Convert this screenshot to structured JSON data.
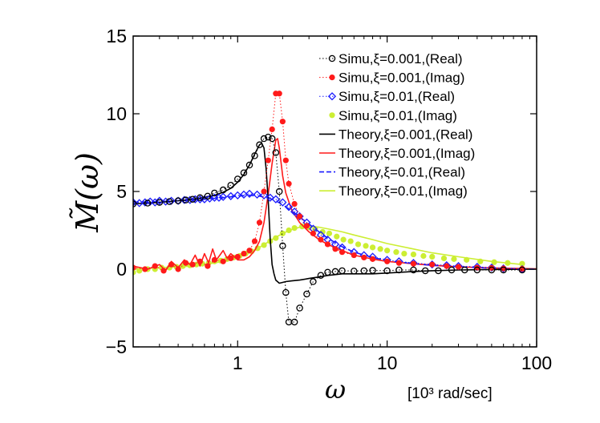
{
  "chart_data": {
    "type": "line",
    "xscale": "log",
    "xlim": [
      0.2,
      100
    ],
    "ylim": [
      -5,
      15
    ],
    "xticks": [
      1,
      10,
      100
    ],
    "xtick_labels": [
      "1",
      "10",
      "100"
    ],
    "yticks": [
      -5,
      0,
      5,
      10,
      15
    ],
    "ytick_labels": [
      "−5",
      "0",
      "5",
      "10",
      "15"
    ],
    "ylabel": "M̃(ω)",
    "xlabel": "ω",
    "xunit": "[10³ rad/sec]",
    "legend_position": "top-right",
    "grid": false,
    "series": [
      {
        "name": "Simu,ξ=0.001,(Real)",
        "kind": "marker",
        "marker": "circle",
        "color": "#000000",
        "dotted": true,
        "x": [
          0.2,
          0.25,
          0.3,
          0.35,
          0.4,
          0.45,
          0.5,
          0.56,
          0.63,
          0.7,
          0.8,
          0.9,
          1.0,
          1.1,
          1.2,
          1.3,
          1.4,
          1.5,
          1.6,
          1.7,
          1.8,
          1.9,
          2.0,
          2.1,
          2.2,
          2.4,
          2.6,
          2.9,
          3.2,
          3.6,
          4.0,
          4.5,
          5.0,
          6.0,
          7.0,
          8.0,
          10.0,
          12.0,
          15.0,
          18.0,
          22.0,
          27.0,
          33.0,
          40.0,
          50.0,
          60.0,
          80.0
        ],
        "y": [
          4.2,
          4.25,
          4.3,
          4.35,
          4.4,
          4.45,
          4.5,
          4.6,
          4.7,
          4.9,
          5.1,
          5.4,
          5.8,
          6.2,
          6.7,
          7.3,
          8.0,
          8.4,
          8.5,
          8.4,
          7.5,
          5.0,
          1.5,
          -1.5,
          -3.4,
          -3.4,
          -2.5,
          -1.6,
          -0.8,
          -0.4,
          -0.2,
          -0.15,
          -0.1,
          -0.12,
          -0.1,
          -0.08,
          -0.1,
          -0.05,
          -0.05,
          -0.1,
          -0.1,
          -0.05,
          -0.05,
          -0.05,
          -0.05,
          -0.05,
          -0.05
        ]
      },
      {
        "name": "Simu,ξ=0.001,(Imag)",
        "kind": "marker",
        "marker": "dot",
        "color": "#ff1a1a",
        "dotted": true,
        "x": [
          0.2,
          0.24,
          0.28,
          0.32,
          0.36,
          0.4,
          0.45,
          0.5,
          0.56,
          0.63,
          0.7,
          0.8,
          0.9,
          1.0,
          1.1,
          1.2,
          1.3,
          1.4,
          1.5,
          1.6,
          1.7,
          1.8,
          1.9,
          2.0,
          2.1,
          2.2,
          2.4,
          2.6,
          2.9,
          3.2,
          3.6,
          4.0,
          4.5,
          5.0,
          6.0,
          7.0,
          8.0,
          10.0,
          12.0,
          15.0,
          20.0,
          25.0,
          30.0,
          40.0,
          50.0,
          60.0,
          80.0
        ],
        "y": [
          0.1,
          0.0,
          0.2,
          -0.1,
          0.3,
          0.0,
          0.4,
          0.3,
          0.5,
          0.2,
          0.6,
          0.5,
          0.7,
          0.8,
          1.0,
          1.2,
          1.8,
          3.0,
          5.0,
          7.0,
          9.0,
          11.3,
          11.3,
          9.5,
          7.0,
          5.5,
          4.2,
          3.4,
          2.8,
          2.3,
          1.9,
          1.6,
          1.3,
          1.1,
          0.9,
          0.75,
          0.65,
          0.5,
          0.4,
          0.35,
          0.3,
          0.2,
          0.15,
          0.1,
          0.08,
          0.05,
          0.03
        ]
      },
      {
        "name": "Simu,ξ=0.01,(Real)",
        "kind": "marker",
        "marker": "diamond",
        "color": "#1a1aff",
        "dotted": true,
        "x": [
          0.2,
          0.22,
          0.24,
          0.26,
          0.28,
          0.3,
          0.33,
          0.36,
          0.4,
          0.44,
          0.48,
          0.52,
          0.56,
          0.6,
          0.65,
          0.7,
          0.75,
          0.8,
          0.9,
          1.0,
          1.1,
          1.2,
          1.35,
          1.5,
          1.65,
          1.8,
          2.0,
          2.2,
          2.4,
          2.6,
          2.9,
          3.2,
          3.6,
          4.0,
          4.5,
          5.0,
          6.0,
          7.0,
          8.0,
          10.0,
          12.0,
          15.0,
          20.0,
          25.0,
          30.0,
          40.0,
          50.0,
          60.0,
          80.0
        ],
        "y": [
          4.3,
          4.25,
          4.3,
          4.35,
          4.3,
          4.4,
          4.35,
          4.4,
          4.4,
          4.45,
          4.45,
          4.5,
          4.5,
          4.5,
          4.55,
          4.6,
          4.6,
          4.65,
          4.7,
          4.75,
          4.8,
          4.85,
          4.8,
          4.75,
          4.6,
          4.5,
          4.3,
          4.0,
          3.7,
          3.4,
          3.0,
          2.6,
          2.2,
          1.9,
          1.6,
          1.4,
          1.1,
          0.9,
          0.8,
          0.6,
          0.5,
          0.4,
          0.3,
          0.25,
          0.2,
          0.15,
          0.1,
          0.05,
          0.0
        ]
      },
      {
        "name": "Simu,ξ=0.01,(Imag)",
        "kind": "marker",
        "marker": "dot",
        "color": "#ccee33",
        "dotted": false,
        "x": [
          0.2,
          0.22,
          0.25,
          0.28,
          0.31,
          0.35,
          0.39,
          0.43,
          0.48,
          0.53,
          0.58,
          0.64,
          0.7,
          0.77,
          0.85,
          0.94,
          1.03,
          1.13,
          1.24,
          1.36,
          1.5,
          1.65,
          1.8,
          2.0,
          2.2,
          2.4,
          2.7,
          3.0,
          3.3,
          3.7,
          4.1,
          4.6,
          5.1,
          5.7,
          6.4,
          7.2,
          8.0,
          9.0,
          10.0,
          11.5,
          13.0,
          15.0,
          17.5,
          20.0,
          24.0,
          28.0,
          34.0,
          42.0,
          52.0,
          64.0,
          80.0
        ],
        "y": [
          -0.2,
          -0.1,
          0.0,
          0.0,
          0.1,
          0.1,
          0.15,
          0.2,
          0.25,
          0.3,
          0.35,
          0.4,
          0.5,
          0.55,
          0.65,
          0.75,
          0.85,
          1.0,
          1.15,
          1.35,
          1.55,
          1.8,
          2.0,
          2.3,
          2.5,
          2.65,
          2.75,
          2.7,
          2.6,
          2.4,
          2.3,
          2.1,
          1.9,
          1.8,
          1.6,
          1.5,
          1.4,
          1.3,
          1.2,
          1.1,
          1.0,
          0.95,
          0.85,
          0.8,
          0.7,
          0.65,
          0.6,
          0.5,
          0.45,
          0.4,
          0.35
        ]
      },
      {
        "name": "Theory,ξ=0.001,(Real)",
        "kind": "line",
        "color": "#000000",
        "dash": "none",
        "x": [
          0.2,
          0.3,
          0.4,
          0.5,
          0.6,
          0.7,
          0.8,
          0.9,
          1.0,
          1.1,
          1.2,
          1.3,
          1.4,
          1.45,
          1.5,
          1.55,
          1.6,
          1.65,
          1.7,
          1.75,
          1.8,
          1.9,
          2.0,
          2.1,
          2.3,
          2.6,
          3.0,
          3.5,
          4.0,
          5.0,
          6.0,
          8.0,
          10.0,
          15.0,
          20.0,
          30.0,
          50.0,
          100.0
        ],
        "y": [
          4.2,
          4.3,
          4.4,
          4.5,
          4.6,
          4.75,
          4.95,
          5.2,
          5.6,
          6.1,
          6.7,
          7.4,
          8.0,
          8.1,
          7.8,
          6.5,
          4.5,
          2.0,
          0.3,
          -0.3,
          -0.7,
          -0.9,
          -0.85,
          -0.8,
          -0.75,
          -0.7,
          -0.6,
          -0.5,
          -0.4,
          -0.3,
          -0.3,
          -0.3,
          -0.25,
          -0.15,
          -0.1,
          -0.05,
          -0.02,
          0.0
        ]
      },
      {
        "name": "Theory,ξ=0.001,(Imag)",
        "kind": "line",
        "color": "#ff1a1a",
        "dash": "none",
        "x": [
          0.2,
          0.25,
          0.3,
          0.33,
          0.36,
          0.4,
          0.44,
          0.48,
          0.52,
          0.56,
          0.6,
          0.64,
          0.68,
          0.72,
          0.76,
          0.8,
          0.85,
          0.9,
          0.95,
          1.0,
          1.1,
          1.2,
          1.3,
          1.4,
          1.5,
          1.6,
          1.7,
          1.8,
          1.85,
          1.9,
          2.0,
          2.1,
          2.3,
          2.6,
          3.0,
          3.5,
          4.0,
          5.0,
          6.0,
          8.0,
          10.0,
          15.0,
          20.0,
          30.0,
          50.0,
          100.0
        ],
        "y": [
          0.2,
          0.0,
          0.3,
          -0.1,
          0.5,
          0.1,
          0.6,
          0.3,
          0.9,
          0.2,
          1.0,
          0.4,
          1.3,
          0.6,
          0.9,
          1.2,
          0.7,
          1.0,
          0.8,
          0.6,
          0.6,
          0.8,
          1.2,
          1.8,
          3.0,
          4.8,
          6.8,
          8.3,
          8.4,
          7.8,
          6.0,
          4.9,
          3.8,
          3.0,
          2.4,
          1.9,
          1.6,
          1.2,
          0.9,
          0.65,
          0.5,
          0.35,
          0.25,
          0.15,
          0.08,
          0.02
        ]
      },
      {
        "name": "Theory,ξ=0.01,(Real)",
        "kind": "line",
        "color": "#1a1aff",
        "dash": "7,5",
        "x": [
          0.2,
          0.3,
          0.4,
          0.5,
          0.6,
          0.8,
          1.0,
          1.2,
          1.4,
          1.6,
          1.8,
          2.0,
          2.3,
          2.6,
          3.0,
          3.5,
          4.0,
          5.0,
          6.0,
          8.0,
          10.0,
          15.0,
          20.0,
          30.0,
          50.0,
          100.0
        ],
        "y": [
          4.3,
          4.35,
          4.4,
          4.45,
          4.5,
          4.6,
          4.7,
          4.75,
          4.7,
          4.6,
          4.4,
          4.15,
          3.75,
          3.35,
          2.9,
          2.4,
          2.0,
          1.45,
          1.1,
          0.75,
          0.55,
          0.35,
          0.25,
          0.15,
          0.06,
          0.0
        ]
      },
      {
        "name": "Theory,ξ=0.01,(Imag)",
        "kind": "line",
        "color": "#ccee33",
        "dash": "none",
        "x": [
          0.2,
          0.3,
          0.4,
          0.5,
          0.6,
          0.8,
          1.0,
          1.2,
          1.4,
          1.6,
          1.8,
          2.0,
          2.3,
          2.6,
          3.0,
          3.5,
          4.0,
          5.0,
          6.0,
          8.0,
          10.0,
          15.0,
          20.0,
          30.0,
          50.0,
          80.0
        ],
        "y": [
          0.0,
          0.1,
          0.15,
          0.2,
          0.3,
          0.5,
          0.75,
          1.05,
          1.4,
          1.75,
          2.05,
          2.3,
          2.55,
          2.7,
          2.75,
          2.7,
          2.6,
          2.4,
          2.2,
          1.9,
          1.65,
          1.3,
          1.05,
          0.8,
          0.5,
          0.3
        ]
      }
    ]
  }
}
